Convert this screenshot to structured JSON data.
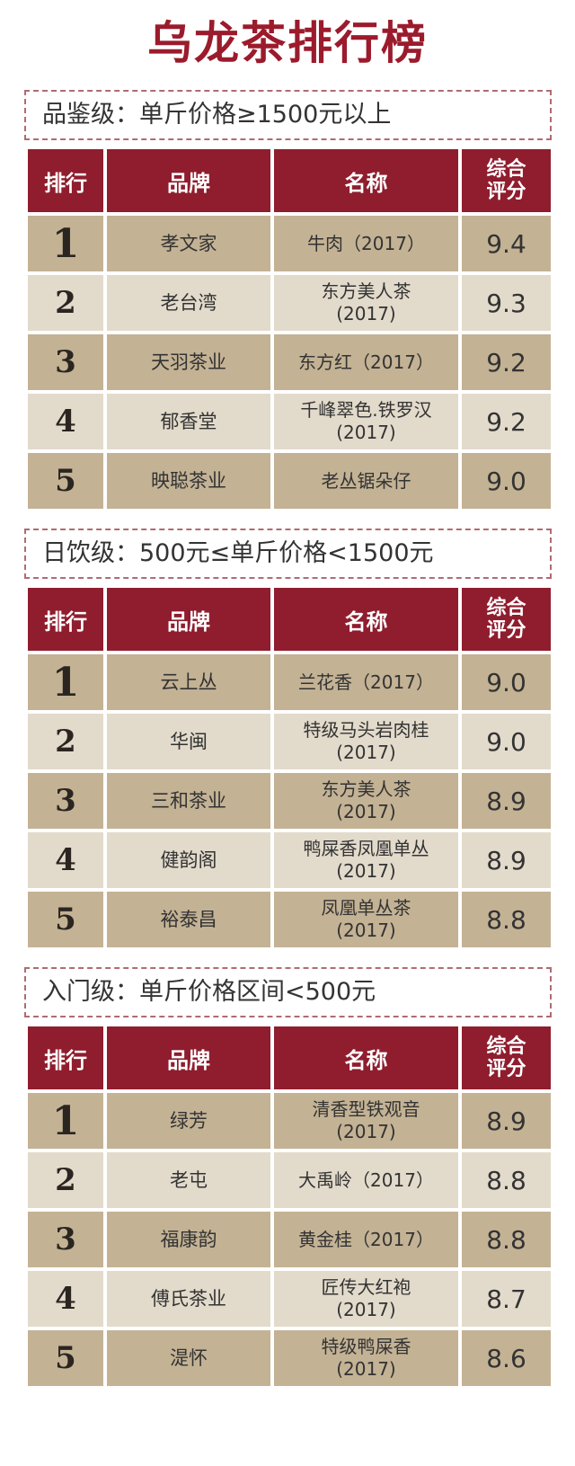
{
  "title": "乌龙茶排行榜",
  "headers": {
    "rank": "排行",
    "brand": "品牌",
    "name": "名称",
    "score_1": "综合",
    "score_2": "评分"
  },
  "sections": [
    {
      "label": "品鉴级：单斤价格≥1500元以上",
      "rows": [
        {
          "rank": "1",
          "brand": "孝文家",
          "name_1": "牛肉（2017）",
          "name_2": "",
          "score": "9.4"
        },
        {
          "rank": "2",
          "brand": "老台湾",
          "name_1": "东方美人茶",
          "name_2": "(2017)",
          "score": "9.3"
        },
        {
          "rank": "3",
          "brand": "天羽茶业",
          "name_1": "东方红（2017）",
          "name_2": "",
          "score": "9.2"
        },
        {
          "rank": "4",
          "brand": "郁香堂",
          "name_1": "千峰翠色.铁罗汉",
          "name_2": "(2017)",
          "score": "9.2"
        },
        {
          "rank": "5",
          "brand": "映聪茶业",
          "name_1": "老丛锯朵仔",
          "name_2": "",
          "score": "9.0"
        }
      ]
    },
    {
      "label": "日饮级：500元≤单斤价格<1500元",
      "rows": [
        {
          "rank": "1",
          "brand": "云上丛",
          "name_1": "兰花香（2017）",
          "name_2": "",
          "score": "9.0"
        },
        {
          "rank": "2",
          "brand": "华闽",
          "name_1": "特级马头岩肉桂",
          "name_2": "(2017)",
          "score": "9.0"
        },
        {
          "rank": "3",
          "brand": "三和茶业",
          "name_1": "东方美人茶",
          "name_2": "(2017)",
          "score": "8.9"
        },
        {
          "rank": "4",
          "brand": "健韵阁",
          "name_1": "鸭屎香凤凰单丛",
          "name_2": "(2017)",
          "score": "8.9"
        },
        {
          "rank": "5",
          "brand": "裕泰昌",
          "name_1": "凤凰单丛茶",
          "name_2": "(2017)",
          "score": "8.8"
        }
      ]
    },
    {
      "label": "入门级：单斤价格区间<500元",
      "rows": [
        {
          "rank": "1",
          "brand": "绿芳",
          "name_1": "清香型铁观音",
          "name_2": "(2017)",
          "score": "8.9"
        },
        {
          "rank": "2",
          "brand": "老屯",
          "name_1": "大禹岭（2017）",
          "name_2": "",
          "score": "8.8"
        },
        {
          "rank": "3",
          "brand": "福康韵",
          "name_1": "黄金桂（2017）",
          "name_2": "",
          "score": "8.8"
        },
        {
          "rank": "4",
          "brand": "傅氏茶业",
          "name_1": "匠传大红袍",
          "name_2": "(2017)",
          "score": "8.7"
        },
        {
          "rank": "5",
          "brand": "湜怀",
          "name_1": "特级鸭屎香",
          "name_2": "(2017)",
          "score": "8.6"
        }
      ]
    }
  ]
}
